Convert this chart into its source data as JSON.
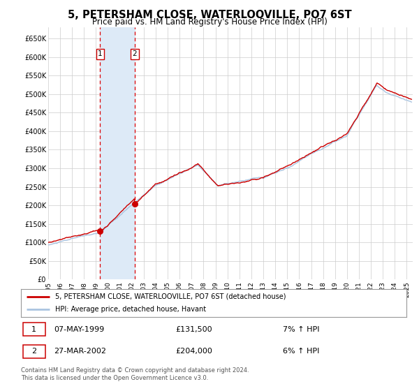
{
  "title": "5, PETERSHAM CLOSE, WATERLOOVILLE, PO7 6ST",
  "subtitle": "Price paid vs. HM Land Registry's House Price Index (HPI)",
  "legend_line1": "5, PETERSHAM CLOSE, WATERLOOVILLE, PO7 6ST (detached house)",
  "legend_line2": "HPI: Average price, detached house, Havant",
  "transaction1_date": "07-MAY-1999",
  "transaction1_price": 131500,
  "transaction1_hpi": "7% ↑ HPI",
  "transaction2_date": "27-MAR-2002",
  "transaction2_price": 204000,
  "transaction2_hpi": "6% ↑ HPI",
  "footer": "Contains HM Land Registry data © Crown copyright and database right 2024.\nThis data is licensed under the Open Government Licence v3.0.",
  "hpi_color": "#aac4e0",
  "price_color": "#cc0000",
  "point_color": "#cc0000",
  "vspan_color": "#ddeaf7",
  "vline_color": "#dd0000",
  "grid_color": "#cccccc",
  "background_color": "#ffffff",
  "ylim": [
    0,
    680000
  ],
  "yticks": [
    0,
    50000,
    100000,
    150000,
    200000,
    250000,
    300000,
    350000,
    400000,
    450000,
    500000,
    550000,
    600000,
    650000
  ],
  "start_year": 1995.0,
  "end_year": 2025.5,
  "transaction1_x": 1999.35,
  "transaction2_x": 2002.23
}
